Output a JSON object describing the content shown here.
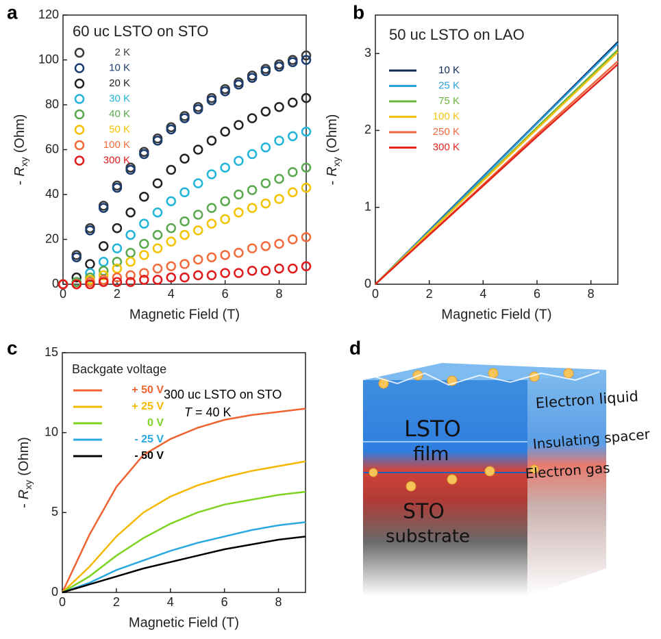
{
  "chart_data": [
    {
      "type": "scatter",
      "panel": "a",
      "title": "60 uc LSTO on STO",
      "xlabel": "Magnetic Field (T)",
      "ylabel": [
        "-",
        "R",
        "xy",
        "(Ohm)"
      ],
      "xlim": [
        0,
        9
      ],
      "ylim": [
        0,
        120
      ],
      "xticks": [
        0,
        2,
        4,
        6,
        8
      ],
      "yticks": [
        0,
        20,
        40,
        60,
        80,
        100,
        120
      ],
      "x": [
        0,
        0.5,
        1,
        1.5,
        2,
        2.5,
        3,
        3.5,
        4,
        4.5,
        5,
        5.5,
        6,
        6.5,
        7,
        7.5,
        8,
        8.5,
        9
      ],
      "series": [
        {
          "name": "2 K",
          "color": "#3a3a3a",
          "values": [
            0,
            13,
            25,
            35,
            44,
            52,
            59,
            65,
            70,
            75,
            79,
            83,
            87,
            90,
            93,
            96,
            98,
            100,
            102
          ]
        },
        {
          "name": "10 K",
          "color": "#1b3c70",
          "values": [
            0,
            12,
            24,
            34,
            43,
            51,
            58,
            64,
            69,
            74,
            78,
            82,
            86,
            89,
            92,
            95,
            97,
            99,
            100
          ]
        },
        {
          "name": "20 K",
          "color": "#222222",
          "values": [
            0,
            3,
            9,
            17,
            25,
            32,
            39,
            45,
            51,
            56,
            60,
            64,
            68,
            71,
            74,
            77,
            79,
            81,
            83
          ]
        },
        {
          "name": "30 K",
          "color": "#20b4d8",
          "values": [
            0,
            1,
            5,
            10,
            16,
            22,
            27,
            32,
            37,
            41,
            45,
            49,
            52,
            55,
            58,
            61,
            64,
            66,
            68
          ]
        },
        {
          "name": "40 K",
          "color": "#5aa84e",
          "values": [
            0,
            1,
            3,
            6,
            10,
            14,
            18,
            22,
            25,
            28,
            31,
            34,
            37,
            40,
            42,
            45,
            47,
            50,
            52
          ]
        },
        {
          "name": "50 K",
          "color": "#f3c300",
          "values": [
            0,
            0,
            2,
            4,
            7,
            10,
            13,
            16,
            19,
            22,
            24,
            27,
            29,
            32,
            34,
            36,
            38,
            41,
            43
          ]
        },
        {
          "name": "100 K",
          "color": "#f26b3a",
          "values": [
            0,
            0,
            1,
            2,
            3,
            4,
            5,
            7,
            8,
            9,
            11,
            12,
            13,
            14,
            16,
            17,
            18,
            20,
            21
          ]
        },
        {
          "name": "300 K",
          "color": "#e0191b",
          "values": [
            0,
            0,
            0,
            1,
            1,
            1,
            2,
            2,
            3,
            3,
            4,
            4,
            5,
            5,
            6,
            6,
            7,
            7,
            8
          ]
        }
      ]
    },
    {
      "type": "line",
      "panel": "b",
      "title": "50 uc LSTO on LAO",
      "xlabel": "Magnetic Field (T)",
      "ylabel": [
        "-",
        "R",
        "xy",
        "(Ohm)"
      ],
      "xlim": [
        0,
        9
      ],
      "ylim": [
        0,
        3.5
      ],
      "xticks": [
        0,
        2,
        4,
        6,
        8
      ],
      "yticks": [
        0,
        1,
        2,
        3
      ],
      "x": [
        0,
        3,
        6,
        9
      ],
      "series": [
        {
          "name": "10 K",
          "color": "#0b2a55",
          "values": [
            0,
            1.05,
            2.1,
            3.15
          ]
        },
        {
          "name": "25 K",
          "color": "#2aa0dc",
          "values": [
            0,
            1.04,
            2.09,
            3.13
          ]
        },
        {
          "name": "75 K",
          "color": "#6db33f",
          "values": [
            0,
            1.02,
            2.04,
            3.05
          ]
        },
        {
          "name": "100 K",
          "color": "#f4c20d",
          "values": [
            0,
            1.01,
            2.02,
            3.02
          ]
        },
        {
          "name": "250 K",
          "color": "#f0663a",
          "values": [
            0,
            0.97,
            1.95,
            2.9
          ]
        },
        {
          "name": "300 K",
          "color": "#e3241b",
          "values": [
            0,
            0.96,
            1.92,
            2.86
          ]
        }
      ]
    },
    {
      "type": "line",
      "panel": "c",
      "legend_title": "Backgate voltage",
      "annotations": [
        "300 uc LSTO on STO",
        [
          "T",
          "= 40 K"
        ]
      ],
      "xlabel": "Magnetic Field (T)",
      "ylabel": [
        "-",
        "R",
        "xy",
        "(Ohm)"
      ],
      "xlim": [
        0,
        9
      ],
      "ylim": [
        0,
        15
      ],
      "xticks": [
        0,
        2,
        4,
        6,
        8
      ],
      "yticks": [
        0,
        5,
        10,
        15
      ],
      "x": [
        0,
        1,
        2,
        3,
        4,
        5,
        6,
        7,
        8,
        9
      ],
      "series": [
        {
          "name": "+ 50 V",
          "color": "#f0622f",
          "values": [
            0,
            3.6,
            6.6,
            8.6,
            9.6,
            10.3,
            10.8,
            11.1,
            11.3,
            11.5
          ]
        },
        {
          "name": "+ 25 V",
          "color": "#f5b800",
          "values": [
            0,
            1.6,
            3.5,
            5.0,
            6.0,
            6.7,
            7.2,
            7.6,
            7.9,
            8.2
          ]
        },
        {
          "name": "0 V",
          "color": "#7ed321",
          "values": [
            0,
            1.0,
            2.3,
            3.4,
            4.3,
            5.0,
            5.5,
            5.8,
            6.1,
            6.3
          ]
        },
        {
          "name": "- 25 V",
          "color": "#29a8e0",
          "values": [
            0,
            0.6,
            1.4,
            2.0,
            2.6,
            3.1,
            3.5,
            3.9,
            4.2,
            4.4
          ]
        },
        {
          "name": "- 50 V",
          "color": "#000000",
          "values": [
            0,
            0.5,
            1.0,
            1.5,
            1.9,
            2.3,
            2.7,
            3.0,
            3.3,
            3.5
          ]
        }
      ]
    }
  ],
  "diagram": {
    "panel": "d",
    "labels": [
      "LSTO",
      "film",
      "STO",
      "substrate",
      "Electron liquid",
      "Insulating spacer",
      "Electron gas"
    ]
  }
}
